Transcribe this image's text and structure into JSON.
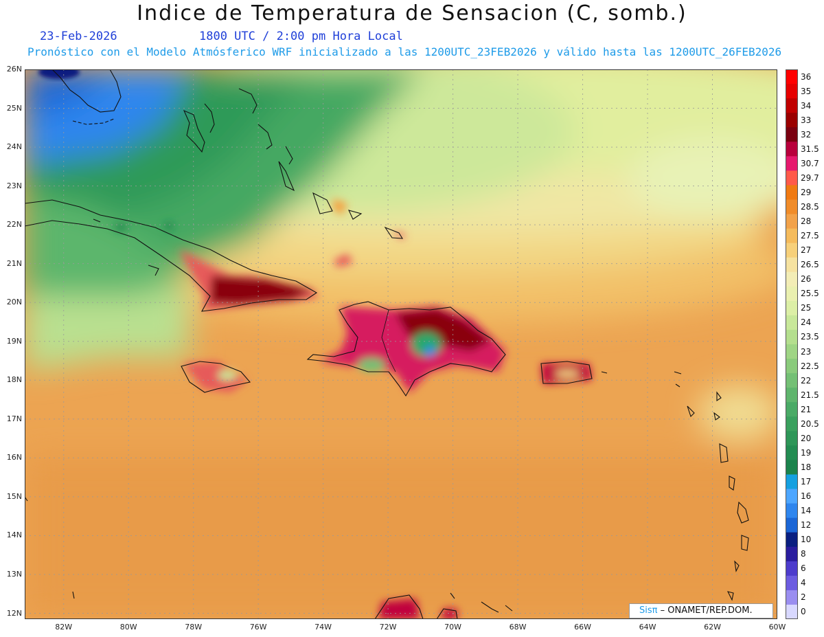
{
  "title": "Indice de Temperatura de Sensacion (C, somb.)",
  "date": "23-Feb-2026",
  "time": "1800 UTC / 2:00 pm Hora Local",
  "subtitle": "Pronóstico con el Modelo Atmósferico WRF inicializado a las 1200UTC_23FEB2026 y válido hasta las  1200UTC_26FEB2026",
  "lat_labels": [
    "26N",
    "25N",
    "24N",
    "23N",
    "22N",
    "21N",
    "20N",
    "19N",
    "18N",
    "17N",
    "16N",
    "15N",
    "14N",
    "13N",
    "12N"
  ],
  "lon_labels": [
    "82W",
    "80W",
    "78W",
    "76W",
    "74W",
    "72W",
    "70W",
    "68W",
    "66W",
    "64W",
    "62W",
    "60W"
  ],
  "legend": {
    "labels": [
      "36",
      "35",
      "34",
      "33",
      "32",
      "31.5",
      "30.7",
      "29.7",
      "29",
      "28.5",
      "28",
      "27.5",
      "27",
      "26.5",
      "26",
      "25.5",
      "25",
      "24",
      "23.5",
      "23",
      "22.5",
      "22",
      "21.5",
      "21",
      "20.5",
      "20",
      "19",
      "18",
      "17",
      "16",
      "14",
      "12",
      "10",
      "8",
      "6",
      "4",
      "2",
      "0"
    ],
    "colors": [
      "#ff0000",
      "#e60000",
      "#c00000",
      "#9a0000",
      "#7a0010",
      "#b8003c",
      "#e6196e",
      "#ff5a4a",
      "#f07a12",
      "#f08c2a",
      "#f2a24a",
      "#f5bb5c",
      "#f7d07a",
      "#f6e2a0",
      "#f3edb6",
      "#eaf0b0",
      "#dcefa6",
      "#c8e89a",
      "#b4df8e",
      "#9fd585",
      "#8acb7c",
      "#74c075",
      "#5fb56d",
      "#4aaa66",
      "#3aa05e",
      "#2e9658",
      "#238c52",
      "#1b834c",
      "#15a0e0",
      "#4da6ff",
      "#2f86ee",
      "#1b66d6",
      "#0a1f80",
      "#2a1d9e",
      "#4d3ccc",
      "#6c5ce0",
      "#9a8ef0",
      "#d8d8ff"
    ]
  },
  "credit": {
    "brand": "Sisπ",
    "org": " – ONAMET/REP.DOM."
  },
  "map_extent": {
    "lon_min": -83.2,
    "lon_max": -60.0,
    "lat_min": 11.85,
    "lat_max": 26.0
  }
}
